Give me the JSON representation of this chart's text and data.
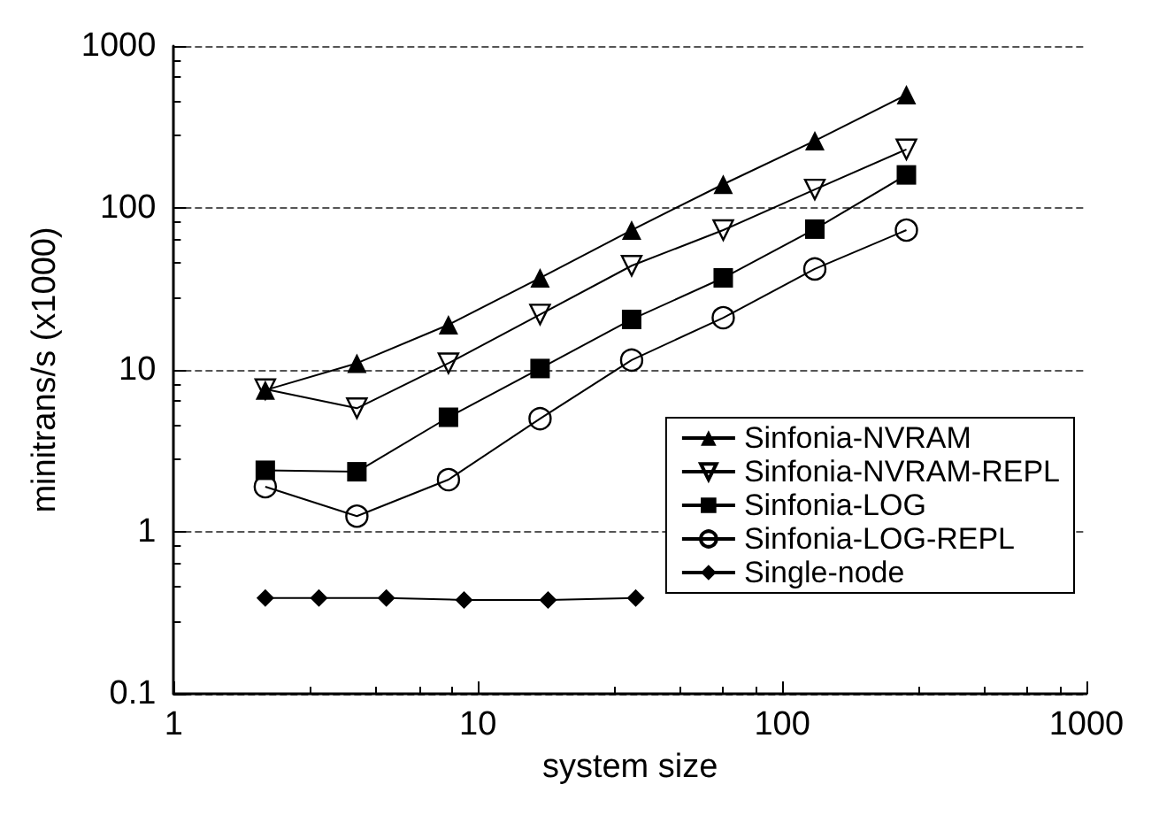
{
  "chart_data": {
    "type": "line",
    "xlabel": "system size",
    "ylabel": "minitrans/s (x1000)",
    "log": "xy",
    "xlim": [
      1,
      1000
    ],
    "xticks": [
      1,
      10,
      100,
      1000
    ],
    "ylim": [
      0.1,
      1000
    ],
    "yticks": [
      0.1,
      1,
      10,
      100,
      1000
    ],
    "grid": "y",
    "legend": "right",
    "series": [
      {
        "name": "Sinfonia-NVRAM",
        "color": "#000000",
        "marker": "triangle",
        "x": [
          2,
          4,
          8,
          16,
          32,
          64,
          128,
          256
        ],
        "values": [
          7.5,
          11,
          19,
          37,
          73,
          140,
          260,
          500
        ]
      },
      {
        "name": "Sinfonia-NVRAM-REPL",
        "color": "#000000",
        "marker": "triangle-down-open",
        "x": [
          2,
          4,
          8,
          16,
          32,
          64,
          128,
          256
        ],
        "values": [
          7.6,
          5.8,
          11,
          22,
          44,
          73,
          130,
          230
        ]
      },
      {
        "name": "Sinfonia-LOG",
        "color": "#000000",
        "marker": "square",
        "x": [
          2,
          4,
          8,
          16,
          32,
          64,
          128,
          256
        ],
        "values": [
          2.4,
          2.35,
          5.1,
          10.2,
          20.5,
          37,
          74,
          160
        ]
      },
      {
        "name": "Sinfonia-LOG-REPL",
        "color": "#000000",
        "marker": "circle-open",
        "x": [
          2,
          4,
          8,
          16,
          32,
          64,
          128,
          256
        ],
        "values": [
          1.9,
          1.25,
          2.1,
          5,
          11.5,
          21,
          42,
          73
        ]
      },
      {
        "name": "Single-node",
        "color": "#000000",
        "marker": "diamond",
        "x": [
          2,
          3,
          5,
          9,
          17,
          33
        ],
        "values": [
          0.39,
          0.39,
          0.39,
          0.38,
          0.38,
          0.39
        ]
      }
    ]
  }
}
